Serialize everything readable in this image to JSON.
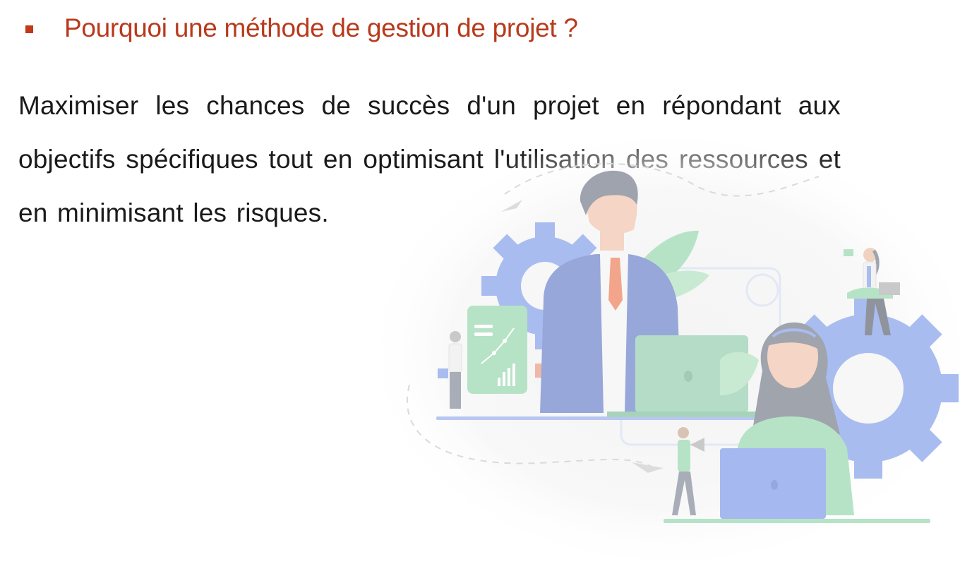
{
  "slide": {
    "heading": "Pourquoi une méthode de gestion de projet ?",
    "body": "Maximiser les chances de succès d'un projet en répondant aux objectifs spécifiques tout en optimisant l'utilisation des ressources et en minimisant les risques."
  },
  "colors": {
    "heading": "#b83a1c",
    "bullet": "#c0391b",
    "body_text": "#1a1a1a",
    "gear": "#a9bcf0",
    "leaf": "#b6e3c6",
    "laptop_screen": "#b4dcc6",
    "blue_laptop": "#a5b8ef"
  },
  "illustration": {
    "name": "project-management-team-illustration"
  }
}
